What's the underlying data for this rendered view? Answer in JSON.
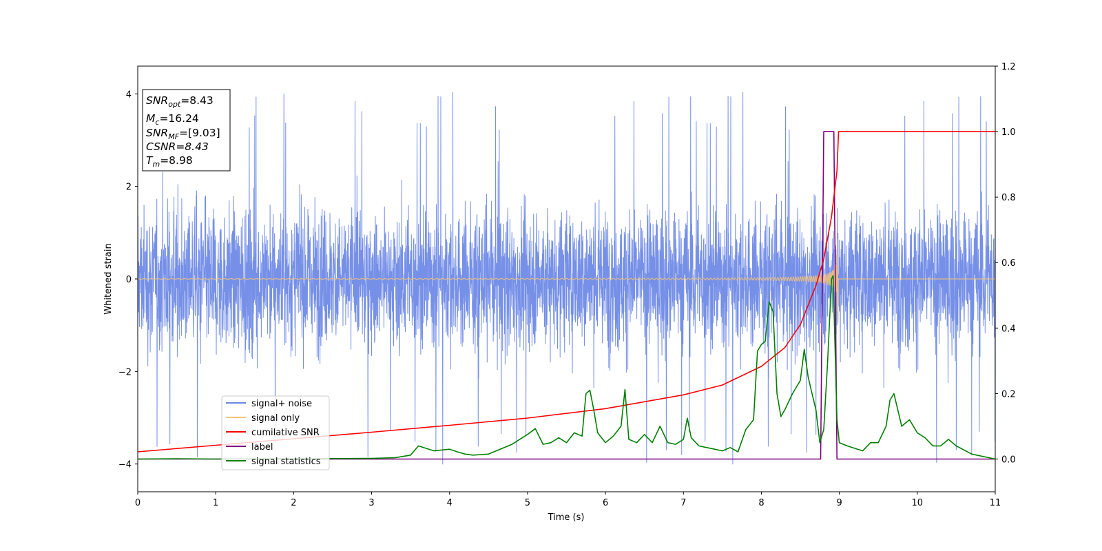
{
  "chart_data": {
    "type": "line",
    "xlabel": "Time (s)",
    "ylabel": "Whitened strain",
    "xlim": [
      0,
      11
    ],
    "ylim_left": [
      -4.6,
      4.6
    ],
    "ylim_right": [
      -0.1,
      1.2
    ],
    "xticks": [
      "0",
      "1",
      "2",
      "3",
      "4",
      "5",
      "6",
      "7",
      "8",
      "9",
      "10",
      "11"
    ],
    "yticks_left": [
      "4",
      "2",
      "0",
      "−2",
      "−4"
    ],
    "yticks_left_values": [
      4,
      2,
      0,
      -2,
      -4
    ],
    "yticks_right": [
      "1.2",
      "1.0",
      "0.8",
      "0.6",
      "0.4",
      "0.2",
      "0.0"
    ],
    "yticks_right_values": [
      1.2,
      1.0,
      0.8,
      0.6,
      0.4,
      0.2,
      0.0
    ],
    "grid": false,
    "legend_placement": "lower-left",
    "info_box": {
      "snr_opt_value": "=8.43",
      "mc_value": "=16.24",
      "snr_mf_value": "=[9.03]",
      "csnr_text": "CSNR=8.43",
      "tm_value": "=8.98"
    },
    "series": [
      {
        "name": "signal+ noise",
        "axis": "left",
        "color": "#6a87e6",
        "style": "noise band, roughly -3.3 to 3.6 with spikes near ±4.1"
      },
      {
        "name": "signal only",
        "axis": "left",
        "color": "#f5c27a",
        "style": "chirp centred on 0, amplitude growing to ~0.9 at t≈8.97, then 0"
      },
      {
        "name": "cumilative SNR",
        "axis": "right",
        "color": "#ff0000",
        "x": [
          0,
          1,
          2,
          3,
          4,
          5,
          6,
          7,
          7.5,
          8,
          8.3,
          8.5,
          8.7,
          8.8,
          8.9,
          8.97,
          8.99,
          11
        ],
        "values": [
          0.022,
          0.042,
          0.062,
          0.082,
          0.103,
          0.125,
          0.154,
          0.196,
          0.226,
          0.283,
          0.34,
          0.41,
          0.53,
          0.61,
          0.74,
          0.88,
          1.0,
          1.0
        ]
      },
      {
        "name": "label",
        "axis": "right",
        "color": "#800080",
        "x": [
          0,
          8.76,
          8.8,
          8.93,
          8.97,
          11
        ],
        "values": [
          0.0,
          0.0,
          1.0,
          1.0,
          0.0,
          0.0
        ]
      },
      {
        "name": "signal statistics",
        "axis": "right",
        "color": "#008000",
        "x": [
          0,
          0.5,
          1,
          2,
          3,
          3.3,
          3.5,
          3.6,
          3.8,
          4.0,
          4.1,
          4.2,
          4.3,
          4.5,
          4.8,
          4.9,
          5.0,
          5.1,
          5.2,
          5.3,
          5.4,
          5.5,
          5.6,
          5.7,
          5.75,
          5.8,
          5.85,
          5.9,
          6.0,
          6.1,
          6.2,
          6.25,
          6.3,
          6.4,
          6.5,
          6.6,
          6.7,
          6.8,
          6.9,
          7.0,
          7.05,
          7.1,
          7.2,
          7.4,
          7.5,
          7.6,
          7.7,
          7.8,
          7.9,
          7.95,
          8.0,
          8.05,
          8.1,
          8.15,
          8.2,
          8.25,
          8.3,
          8.4,
          8.5,
          8.55,
          8.6,
          8.65,
          8.7,
          8.75,
          8.8,
          8.85,
          8.9,
          8.92,
          8.97,
          9.0,
          9.1,
          9.3,
          9.4,
          9.5,
          9.6,
          9.65,
          9.7,
          9.8,
          9.9,
          10.0,
          10.1,
          10.2,
          10.3,
          10.4,
          10.5,
          10.7,
          11
        ],
        "values": [
          0.0,
          0.001,
          0.0,
          0.001,
          0.002,
          0.004,
          0.012,
          0.04,
          0.025,
          0.03,
          0.022,
          0.015,
          0.012,
          0.015,
          0.045,
          0.06,
          0.075,
          0.093,
          0.045,
          0.05,
          0.065,
          0.05,
          0.08,
          0.07,
          0.2,
          0.21,
          0.15,
          0.08,
          0.05,
          0.07,
          0.1,
          0.212,
          0.06,
          0.05,
          0.075,
          0.05,
          0.1,
          0.05,
          0.045,
          0.06,
          0.125,
          0.065,
          0.04,
          0.03,
          0.025,
          0.035,
          0.022,
          0.09,
          0.12,
          0.33,
          0.35,
          0.36,
          0.48,
          0.45,
          0.2,
          0.13,
          0.15,
          0.2,
          0.24,
          0.335,
          0.25,
          0.2,
          0.15,
          0.05,
          0.09,
          0.3,
          0.55,
          0.56,
          0.12,
          0.05,
          0.04,
          0.025,
          0.05,
          0.05,
          0.1,
          0.18,
          0.2,
          0.1,
          0.12,
          0.08,
          0.065,
          0.04,
          0.04,
          0.06,
          0.04,
          0.015,
          0.0
        ]
      }
    ]
  }
}
